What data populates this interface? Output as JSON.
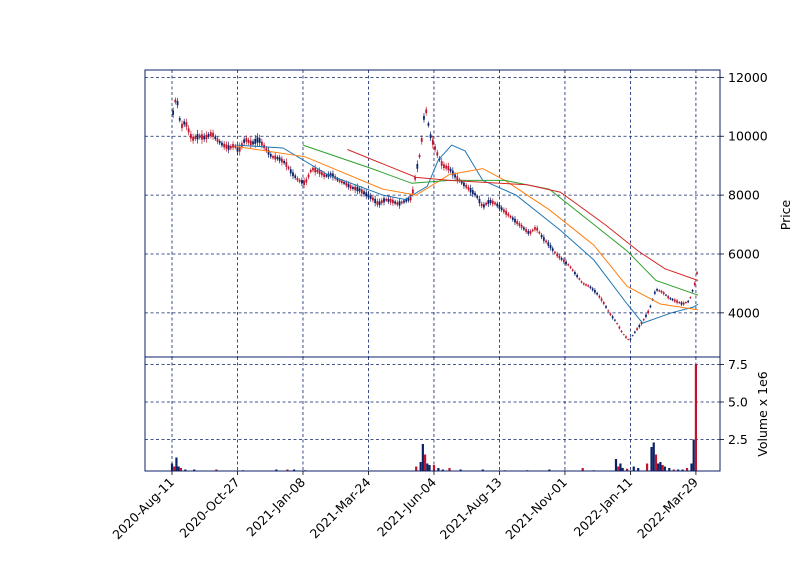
{
  "chart_data": {
    "type": "candlestick",
    "style": {
      "up_color": "#0b2168",
      "down_color": "#c1142b",
      "grid_color": "#0b2168",
      "frame_color": "#0b2168",
      "grid": true,
      "grid_style": "dashed",
      "ylabel_side": "right"
    },
    "ylabel": "Price",
    "ylim": [
      2500,
      12250
    ],
    "yticks": [
      4000,
      6000,
      8000,
      10000,
      12000
    ],
    "x_dates": [
      "2020-Aug-11",
      "2020-Oct-27",
      "2021-Jan-08",
      "2021-Mar-24",
      "2021-Jun-04",
      "2021-Aug-13",
      "2021-Nov-01",
      "2022-Jan-11",
      "2022-Mar-29"
    ],
    "x_range_days": [
      -23,
      268
    ],
    "price_close": [
      [
        0,
        10600
      ],
      [
        2,
        11400
      ],
      [
        4,
        10300
      ],
      [
        6,
        10500
      ],
      [
        9,
        9900
      ],
      [
        12,
        10000
      ],
      [
        15,
        9950
      ],
      [
        18,
        10100
      ],
      [
        20,
        9900
      ],
      [
        23,
        9700
      ],
      [
        26,
        9600
      ],
      [
        28,
        9700
      ],
      [
        30,
        9500
      ],
      [
        33,
        9900
      ],
      [
        36,
        9750
      ],
      [
        39,
        9900
      ],
      [
        42,
        9600
      ],
      [
        45,
        9300
      ],
      [
        48,
        9250
      ],
      [
        51,
        9100
      ],
      [
        54,
        8750
      ],
      [
        57,
        8500
      ],
      [
        60,
        8400
      ],
      [
        63,
        8900
      ],
      [
        66,
        8800
      ],
      [
        69,
        8650
      ],
      [
        72,
        8700
      ],
      [
        75,
        8500
      ],
      [
        78,
        8400
      ],
      [
        81,
        8250
      ],
      [
        84,
        8200
      ],
      [
        87,
        8050
      ],
      [
        90,
        7900
      ],
      [
        93,
        7700
      ],
      [
        96,
        7850
      ],
      [
        99,
        7800
      ],
      [
        102,
        7700
      ],
      [
        105,
        7800
      ],
      [
        108,
        7900
      ],
      [
        110,
        8800
      ],
      [
        112,
        9500
      ],
      [
        114,
        11000
      ],
      [
        115,
        10700
      ],
      [
        116,
        10100
      ],
      [
        118,
        9700
      ],
      [
        120,
        9300
      ],
      [
        122,
        9000
      ],
      [
        125,
        8900
      ],
      [
        128,
        8600
      ],
      [
        131,
        8400
      ],
      [
        134,
        8200
      ],
      [
        137,
        8000
      ],
      [
        140,
        7600
      ],
      [
        143,
        7800
      ],
      [
        146,
        7700
      ],
      [
        149,
        7500
      ],
      [
        152,
        7300
      ],
      [
        155,
        7100
      ],
      [
        158,
        6900
      ],
      [
        161,
        6700
      ],
      [
        164,
        6900
      ],
      [
        167,
        6550
      ],
      [
        170,
        6300
      ],
      [
        173,
        6000
      ],
      [
        176,
        5800
      ],
      [
        179,
        5600
      ],
      [
        182,
        5300
      ],
      [
        185,
        5000
      ],
      [
        188,
        4900
      ],
      [
        191,
        4700
      ],
      [
        194,
        4400
      ],
      [
        197,
        4000
      ],
      [
        200,
        3700
      ],
      [
        203,
        3300
      ],
      [
        206,
        3050
      ],
      [
        209,
        3400
      ],
      [
        212,
        3700
      ],
      [
        215,
        4100
      ],
      [
        218,
        4800
      ],
      [
        221,
        4700
      ],
      [
        224,
        4500
      ],
      [
        227,
        4400
      ],
      [
        230,
        4300
      ],
      [
        233,
        4400
      ],
      [
        236,
        5100
      ],
      [
        237,
        5600
      ]
    ],
    "moving_averages": [
      {
        "color": "#1f77b4",
        "points": [
          [
            29,
            9700
          ],
          [
            50,
            9600
          ],
          [
            70,
            8700
          ],
          [
            95,
            8000
          ],
          [
            105,
            7850
          ],
          [
            115,
            8300
          ],
          [
            120,
            9200
          ],
          [
            126,
            9700
          ],
          [
            132,
            9500
          ],
          [
            140,
            8500
          ],
          [
            155,
            8000
          ],
          [
            175,
            6800
          ],
          [
            190,
            5800
          ],
          [
            205,
            4300
          ],
          [
            212,
            3650
          ],
          [
            225,
            4000
          ],
          [
            235,
            4200
          ],
          [
            237,
            4300
          ]
        ]
      },
      {
        "color": "#ff7f0e",
        "points": [
          [
            29,
            9650
          ],
          [
            60,
            9300
          ],
          [
            95,
            8200
          ],
          [
            110,
            8000
          ],
          [
            125,
            8700
          ],
          [
            140,
            8900
          ],
          [
            150,
            8500
          ],
          [
            170,
            7500
          ],
          [
            190,
            6300
          ],
          [
            205,
            4900
          ],
          [
            220,
            4300
          ],
          [
            237,
            4100
          ]
        ]
      },
      {
        "color": "#2ca02c",
        "points": [
          [
            59,
            9700
          ],
          [
            90,
            8900
          ],
          [
            108,
            8400
          ],
          [
            125,
            8500
          ],
          [
            150,
            8500
          ],
          [
            170,
            8200
          ],
          [
            190,
            7000
          ],
          [
            205,
            6100
          ],
          [
            218,
            5100
          ],
          [
            237,
            4600
          ]
        ]
      },
      {
        "color": "#d62728",
        "points": [
          [
            79,
            9550
          ],
          [
            110,
            8600
          ],
          [
            125,
            8500
          ],
          [
            160,
            8350
          ],
          [
            175,
            8100
          ],
          [
            195,
            7000
          ],
          [
            210,
            6100
          ],
          [
            222,
            5500
          ],
          [
            237,
            5100
          ]
        ]
      }
    ],
    "volume_ylabel": "Volume x 1e6",
    "volume_ylim": [
      0.4,
      8.0
    ],
    "volume_yticks": [
      2.5,
      5.0,
      7.5
    ],
    "volume_ytick_labels": [
      "2.5",
      "5.0",
      "7.5"
    ],
    "volume": [
      [
        0,
        0.9
      ],
      [
        1,
        0.7
      ],
      [
        2,
        1.3
      ],
      [
        3,
        0.7
      ],
      [
        4,
        0.6
      ],
      [
        6,
        0.5
      ],
      [
        10,
        0.5
      ],
      [
        20,
        0.5
      ],
      [
        32,
        0.45
      ],
      [
        47,
        0.5
      ],
      [
        52,
        0.5
      ],
      [
        55,
        0.5
      ],
      [
        60,
        0.45
      ],
      [
        110,
        0.7
      ],
      [
        112,
        1.0
      ],
      [
        113,
        2.2
      ],
      [
        114,
        1.5
      ],
      [
        115,
        0.9
      ],
      [
        116,
        0.8
      ],
      [
        118,
        0.8
      ],
      [
        120,
        0.6
      ],
      [
        122,
        0.5
      ],
      [
        125,
        0.6
      ],
      [
        130,
        0.5
      ],
      [
        140,
        0.5
      ],
      [
        150,
        0.45
      ],
      [
        160,
        0.45
      ],
      [
        170,
        0.5
      ],
      [
        185,
        0.6
      ],
      [
        190,
        0.45
      ],
      [
        200,
        1.2
      ],
      [
        201,
        0.7
      ],
      [
        202,
        0.9
      ],
      [
        203,
        0.6
      ],
      [
        205,
        0.55
      ],
      [
        208,
        0.7
      ],
      [
        210,
        0.6
      ],
      [
        214,
        0.9
      ],
      [
        216,
        2.0
      ],
      [
        217,
        2.3
      ],
      [
        218,
        1.5
      ],
      [
        219,
        0.9
      ],
      [
        220,
        1.0
      ],
      [
        221,
        0.8
      ],
      [
        222,
        0.7
      ],
      [
        224,
        0.6
      ],
      [
        226,
        0.5
      ],
      [
        228,
        0.5
      ],
      [
        230,
        0.5
      ],
      [
        232,
        0.6
      ],
      [
        234,
        0.9
      ],
      [
        235,
        2.5
      ],
      [
        236,
        7.5
      ]
    ]
  }
}
